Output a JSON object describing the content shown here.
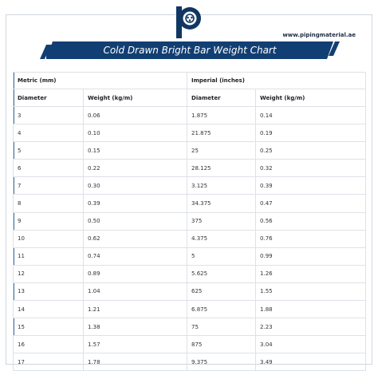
{
  "site": "www.pipingmaterial.ae",
  "title": "Cold Drawn Bright Bar Weight Chart",
  "colors": {
    "banner": "#123f73",
    "accent": "#3f6f9c",
    "logo_ring": "#0f3761"
  },
  "table": {
    "groups": [
      "Metric (mm)",
      "Imperial (inches)"
    ],
    "columns": [
      "Diameter",
      "Weight (kg/m)",
      "Diameter",
      "Weight (kg/m)"
    ],
    "rows": [
      [
        "3",
        "0.06",
        "1.875",
        "0.14"
      ],
      [
        "4",
        "0.10",
        "21.875",
        "0.19"
      ],
      [
        "5",
        "0.15",
        "25",
        "0.25"
      ],
      [
        "6",
        "0.22",
        "28.125",
        "0.32"
      ],
      [
        "7",
        "0.30",
        "3.125",
        "0.39"
      ],
      [
        "8",
        "0.39",
        "34.375",
        "0.47"
      ],
      [
        "9",
        "0.50",
        "375",
        "0.56"
      ],
      [
        "10",
        "0.62",
        "4.375",
        "0.76"
      ],
      [
        "11",
        "0.74",
        "5",
        "0.99"
      ],
      [
        "12",
        "0.89",
        "5.625",
        "1.26"
      ],
      [
        "13",
        "1.04",
        "625",
        "1.55"
      ],
      [
        "14",
        "1.21",
        "6.875",
        "1.88"
      ],
      [
        "15",
        "1.38",
        "75",
        "2.23"
      ],
      [
        "16",
        "1.57",
        "875",
        "3.04"
      ],
      [
        "17",
        "1.78",
        "9.375",
        "3.49"
      ]
    ]
  }
}
